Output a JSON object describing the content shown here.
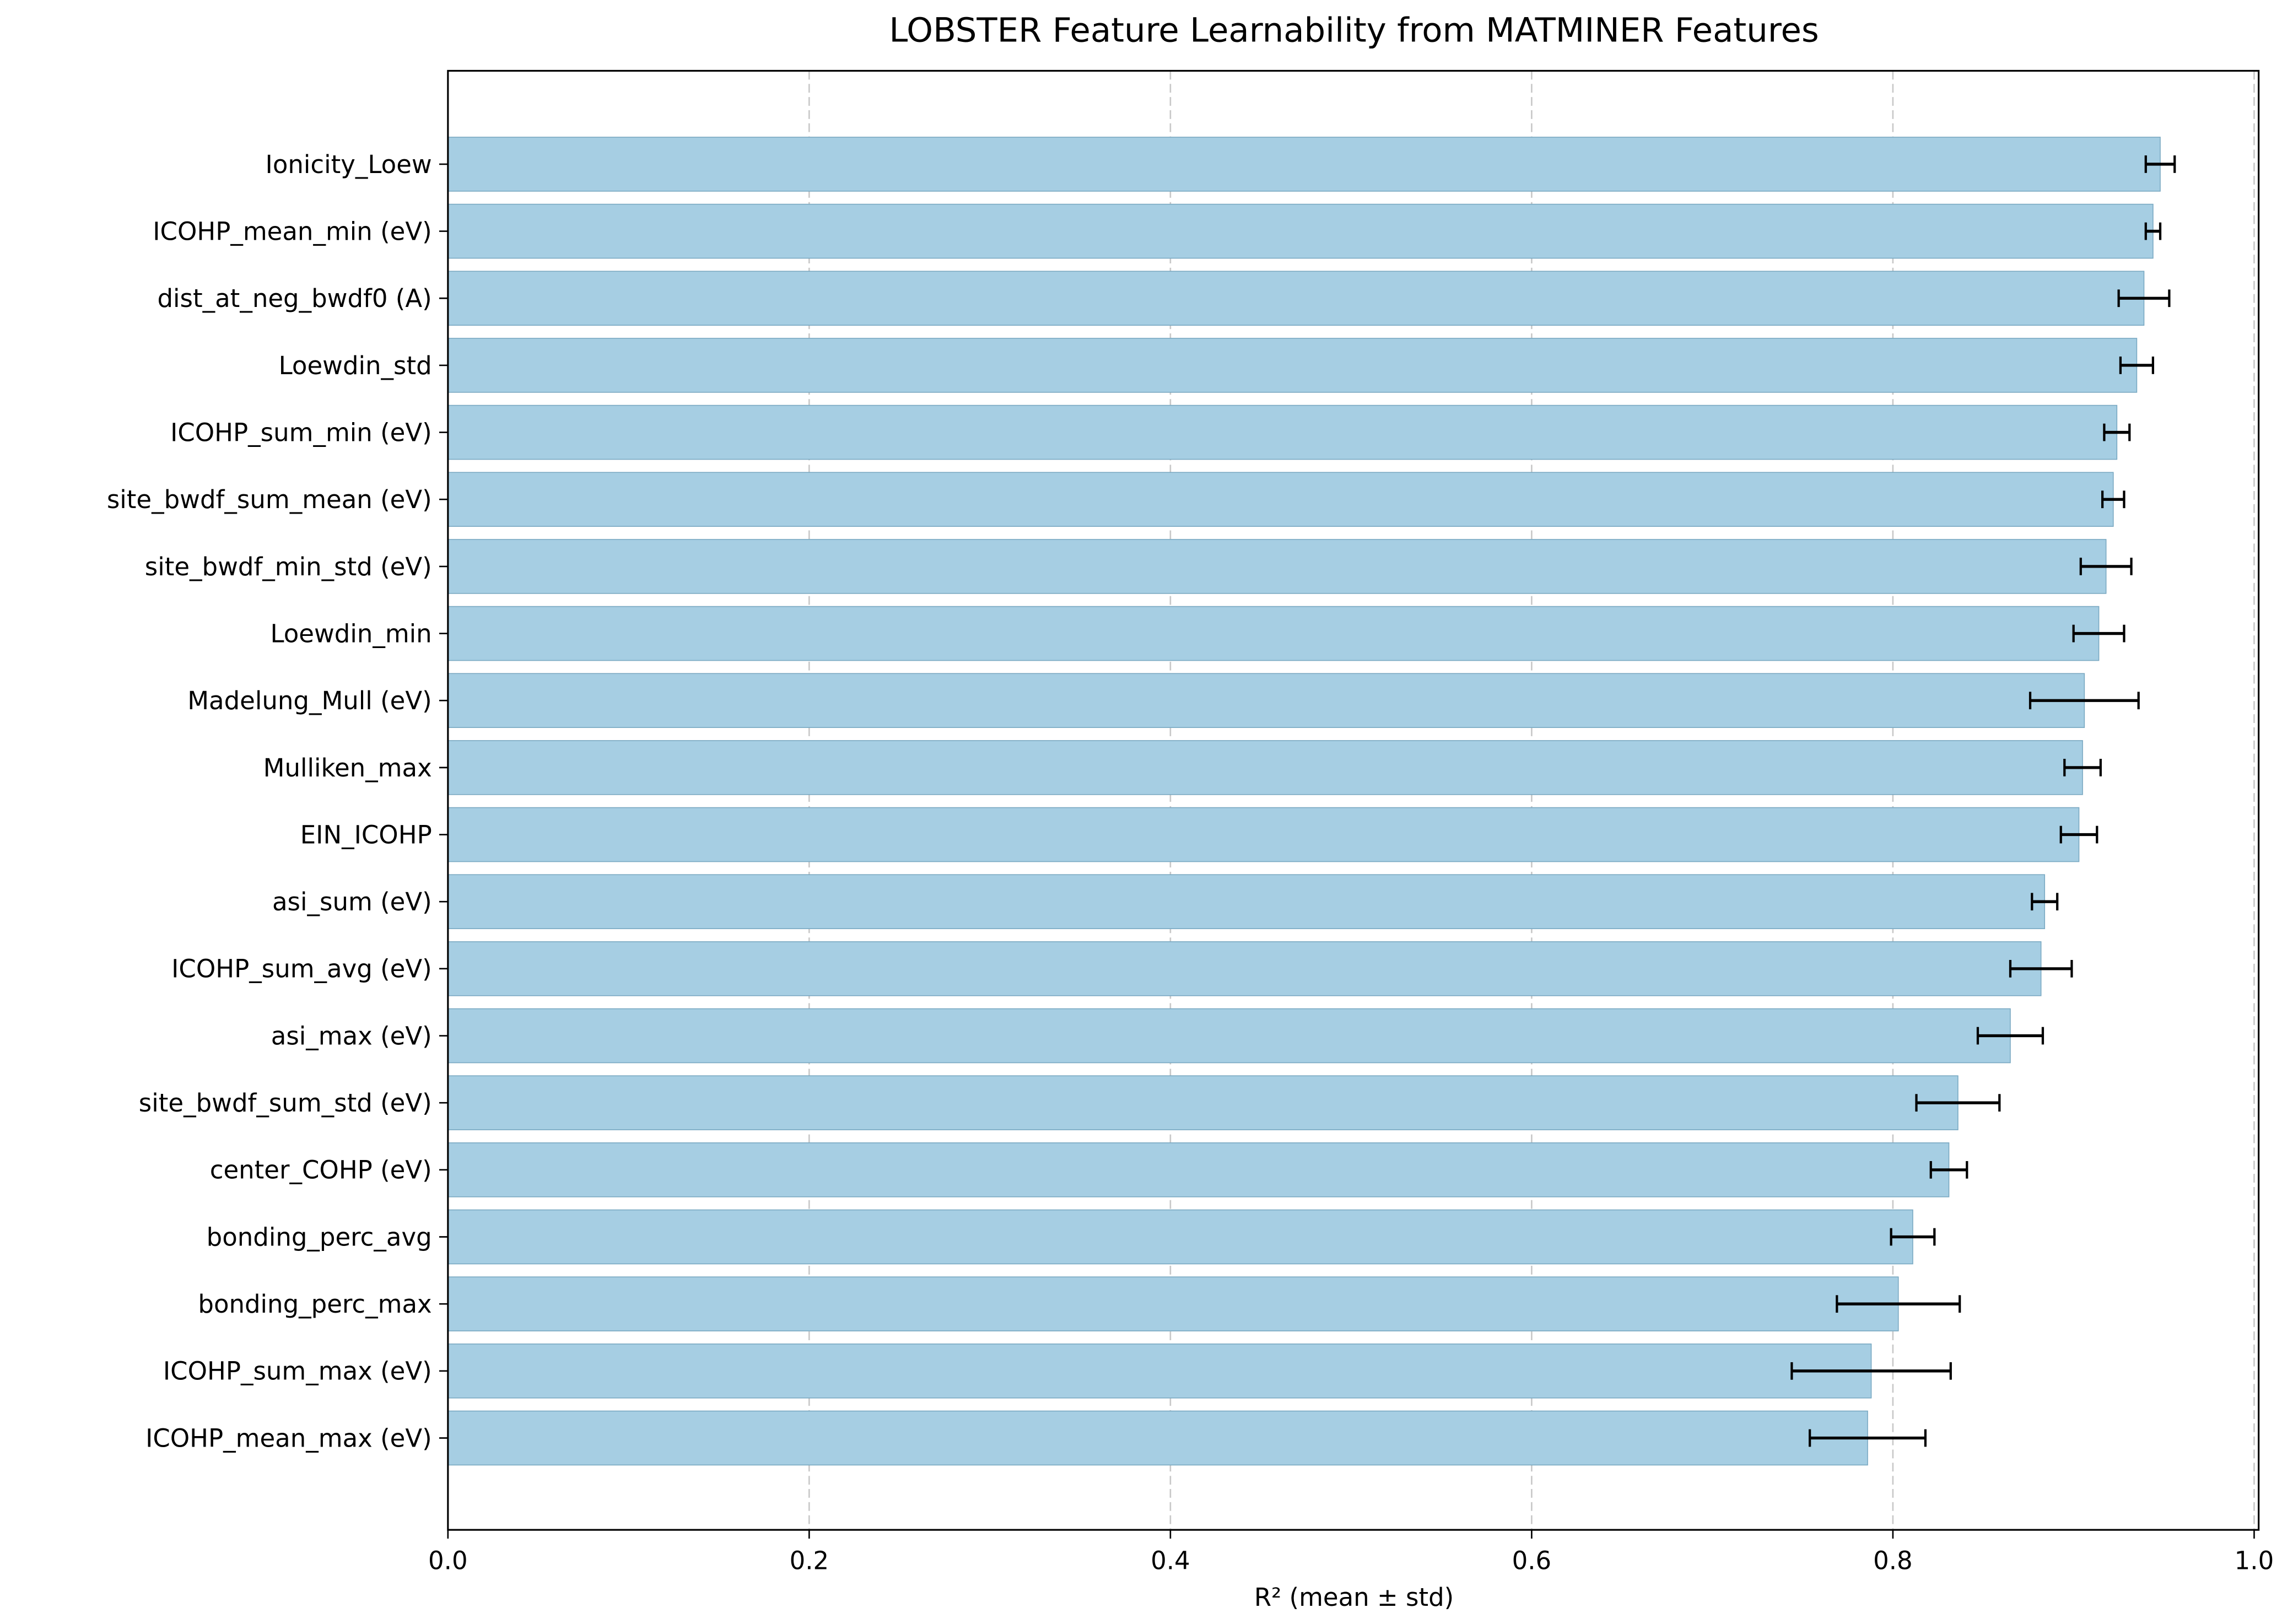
{
  "chart_data": {
    "type": "bar",
    "orientation": "horizontal",
    "title": "LOBSTER Feature Learnability from MATMINER Features",
    "xlabel": "R² (mean ± std)",
    "ylabel": "",
    "xlim": [
      0,
      1.0025
    ],
    "xticks": [
      "0.0",
      "0.2",
      "0.4",
      "0.6",
      "0.8",
      "1.0"
    ],
    "grid": "x, dashed",
    "bar_color": "#a6cee3",
    "bar_edge_color": "#7aa9c2",
    "error_color": "#000000",
    "categories": [
      "Ionicity_Loew",
      "ICOHP_mean_min (eV)",
      "dist_at_neg_bwdf0 (A)",
      "Loewdin_std",
      "ICOHP_sum_min (eV)",
      "site_bwdf_sum_mean (eV)",
      "site_bwdf_min_std (eV)",
      "Loewdin_min",
      "Madelung_Mull (eV)",
      "Mulliken_max",
      "EIN_ICOHP",
      "asi_sum (eV)",
      "ICOHP_sum_avg (eV)",
      "asi_max (eV)",
      "site_bwdf_sum_std (eV)",
      "center_COHP (eV)",
      "bonding_perc_avg",
      "bonding_perc_max",
      "ICOHP_sum_max (eV)",
      "ICOHP_mean_max (eV)"
    ],
    "values": [
      0.948,
      0.944,
      0.939,
      0.935,
      0.924,
      0.922,
      0.918,
      0.914,
      0.906,
      0.905,
      0.903,
      0.884,
      0.882,
      0.865,
      0.836,
      0.831,
      0.811,
      0.803,
      0.788,
      0.786
    ],
    "errors": [
      0.008,
      0.004,
      0.014,
      0.009,
      0.007,
      0.006,
      0.014,
      0.014,
      0.03,
      0.01,
      0.01,
      0.007,
      0.017,
      0.018,
      0.023,
      0.01,
      0.012,
      0.034,
      0.044,
      0.032
    ]
  }
}
